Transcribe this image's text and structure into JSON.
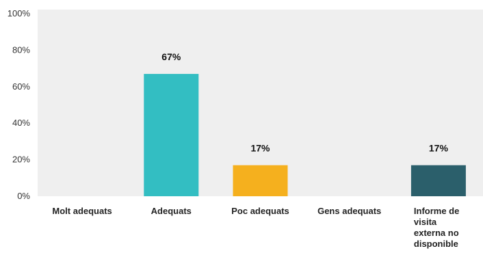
{
  "chart_data": {
    "type": "bar",
    "categories": [
      "Molt adequats",
      "Adequats",
      "Poc adequats",
      "Gens adequats",
      "Informe de visita externa no disponible"
    ],
    "values": [
      0,
      67,
      17,
      0,
      17
    ],
    "data_labels": [
      "",
      "67%",
      "17%",
      "",
      "17%"
    ],
    "colors": [
      "#2e9bc9",
      "#33bec2",
      "#f5b01e",
      "#5a7f8c",
      "#2b5f6b"
    ],
    "ylim": [
      0,
      100
    ],
    "yticks": [
      0,
      20,
      40,
      60,
      80,
      100
    ],
    "ytick_labels": [
      "0%",
      "20%",
      "40%",
      "60%",
      "80%",
      "100%"
    ],
    "title": "",
    "xlabel": "",
    "ylabel": "",
    "grid": false,
    "legend": "none",
    "plot_background": "#efefef"
  }
}
